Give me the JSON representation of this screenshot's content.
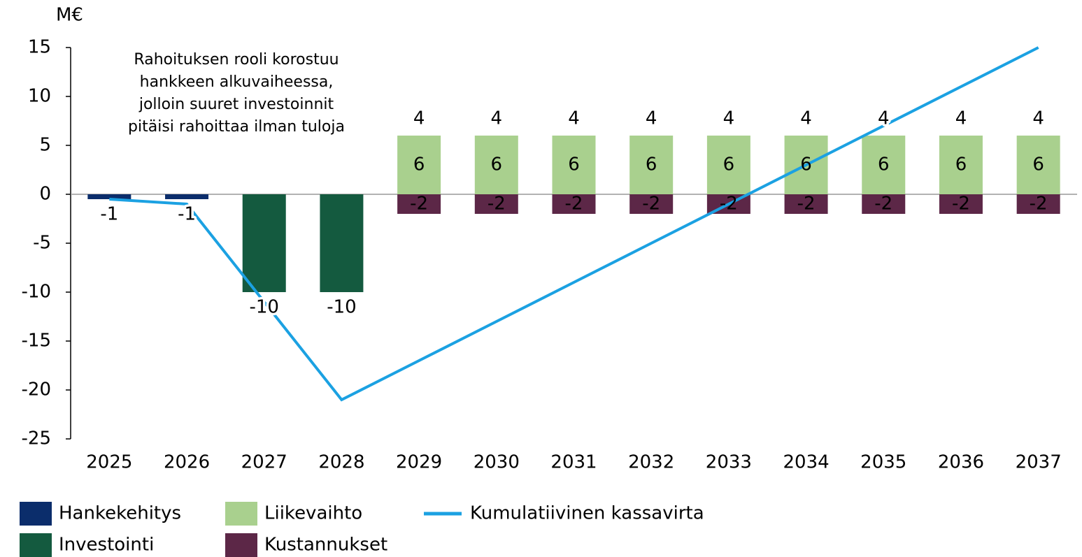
{
  "chart_data": {
    "type": "bar",
    "y_unit_label": "M€",
    "annotation": [
      "Rahoituksen rooli korostuu",
      "hankkeen alkuvaiheessa,",
      "jolloin suuret investoinnit",
      "pitäisi rahoittaa ilman tuloja"
    ],
    "categories": [
      "2025",
      "2026",
      "2027",
      "2028",
      "2029",
      "2030",
      "2031",
      "2032",
      "2033",
      "2034",
      "2035",
      "2036",
      "2037"
    ],
    "series": [
      {
        "name": "Hankekehitys",
        "color": "#0b2d6b",
        "values": [
          -0.5,
          -0.5,
          null,
          null,
          null,
          null,
          null,
          null,
          null,
          null,
          null,
          null,
          null
        ],
        "value_labels": [
          "-1",
          "-1",
          null,
          null,
          null,
          null,
          null,
          null,
          null,
          null,
          null,
          null,
          null
        ]
      },
      {
        "name": "Investointi",
        "color": "#145a3f",
        "values": [
          null,
          null,
          -10,
          -10,
          null,
          null,
          null,
          null,
          null,
          null,
          null,
          null,
          null
        ]
      },
      {
        "name": "Liikevaihto",
        "color": "#a9d08e",
        "values": [
          null,
          null,
          null,
          null,
          6,
          6,
          6,
          6,
          6,
          6,
          6,
          6,
          6
        ]
      },
      {
        "name": "Kustannukset",
        "color": "#5c2747",
        "values": [
          null,
          null,
          null,
          null,
          -2,
          -2,
          -2,
          -2,
          -2,
          -2,
          -2,
          -2,
          -2
        ]
      },
      {
        "name": "Kumulatiivinen kassavirta",
        "type": "line",
        "color": "#1ba1e2",
        "values": [
          -0.5,
          -1,
          -11,
          -21,
          -17,
          -13,
          -9,
          -5,
          -1,
          3,
          7,
          11,
          15
        ]
      }
    ],
    "totals": [
      null,
      null,
      null,
      null,
      4,
      4,
      4,
      4,
      4,
      4,
      4,
      4,
      4
    ],
    "ylim": [
      -25,
      15
    ],
    "yticks": [
      -25,
      -20,
      -15,
      -10,
      -5,
      0,
      5,
      10,
      15
    ]
  }
}
